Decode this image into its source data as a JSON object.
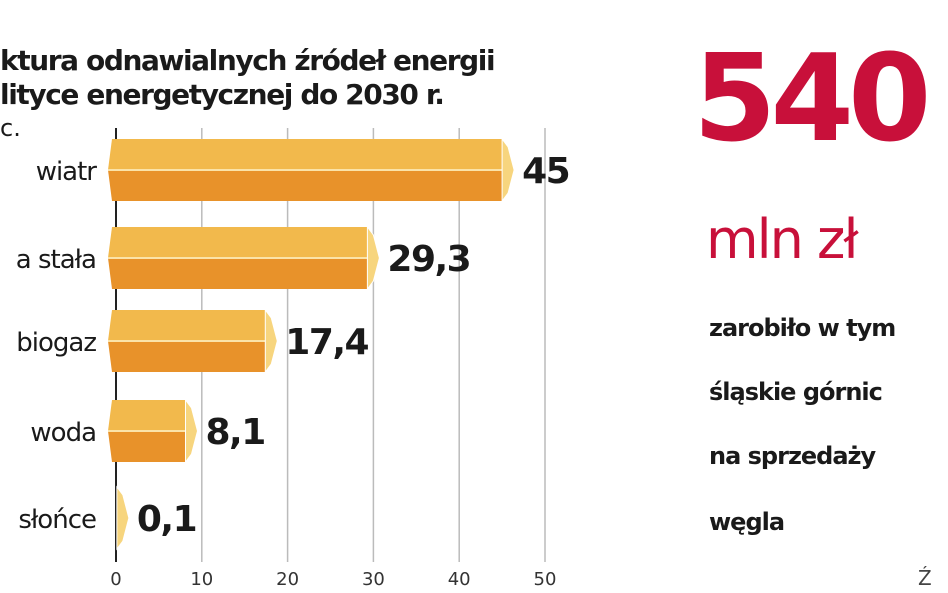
{
  "chart_data": {
    "type": "bar",
    "title": "ktura odnawialnych źródeł energii\nlityce energetycznej do 2030 r.",
    "title_lines": [
      "ktura odnawialnych źródeł energii",
      "lityce energetycznej do 2030 r."
    ],
    "unit": "c.",
    "categories": [
      "wiatr",
      "a stała",
      "biogaz",
      "woda",
      "słońce"
    ],
    "values": [
      45,
      29.3,
      17.4,
      8.1,
      0.1
    ],
    "value_labels": [
      "45",
      "29,3",
      "17,4",
      "8,1",
      "0,1"
    ],
    "xlim": [
      0,
      50
    ],
    "xticks": [
      "0",
      "10",
      "20",
      "30",
      "40",
      "50"
    ],
    "grid": true,
    "colors": {
      "bar_top": "#f2b94c",
      "bar_bottom": "#e8922a",
      "cap": "#f7d57e"
    }
  },
  "callout": {
    "number": "540",
    "unit": "mln zł",
    "lines": [
      "zarobiło w tym",
      "śląskie górnic",
      "na sprzedaży",
      "węgla"
    ],
    "source": "Ź",
    "color": "#c8103a"
  }
}
